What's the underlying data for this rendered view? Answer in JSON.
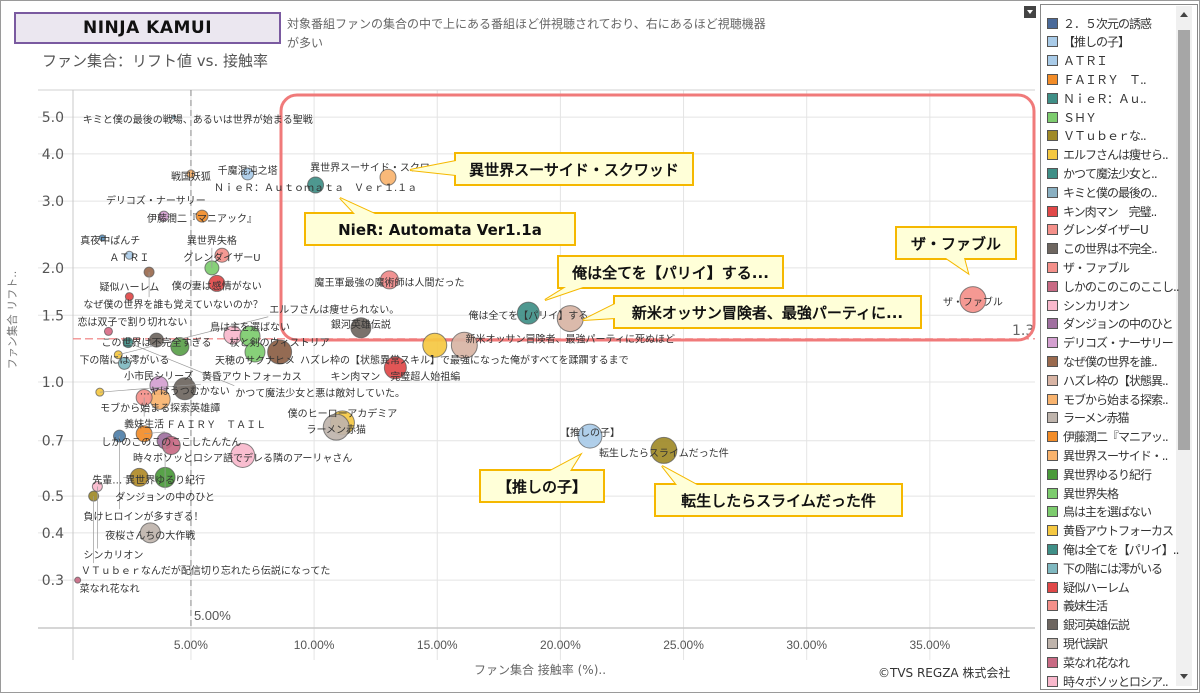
{
  "header": {
    "title": "NINJA KAMUI",
    "description": "対象番組ファンの集合の中で上にある番組ほど併視聴されており、右にあるほど視聴機器が多い",
    "subtitle": "ファン集合：リフト値 vs. 接触率"
  },
  "footer": {
    "copyright": "©TVS REGZA 株式会社"
  },
  "chart_data": {
    "type": "scatter",
    "xlabel": "ファン集合 接触率 (%)..",
    "ylabel": "ファン集合 リフト..",
    "x_unit": "%",
    "xlim": [
      0,
      39
    ],
    "ylim": [
      0.224,
      5.9
    ],
    "y_scale": "log",
    "grid": true,
    "x_ticks": [
      {
        "v": 5,
        "label": "5.00%"
      },
      {
        "v": 10,
        "label": "10.00%"
      },
      {
        "v": 15,
        "label": "15.00%"
      },
      {
        "v": 20,
        "label": "20.00%"
      },
      {
        "v": 25,
        "label": "25.00%"
      },
      {
        "v": 30,
        "label": "30.00%"
      },
      {
        "v": 35,
        "label": "35.00%"
      }
    ],
    "y_ticks": [
      {
        "v": 0.3,
        "label": "0.3"
      },
      {
        "v": 0.4,
        "label": "0.4"
      },
      {
        "v": 0.5,
        "label": "0.5"
      },
      {
        "v": 0.7,
        "label": "0.7"
      },
      {
        "v": 1.0,
        "label": "1.0"
      },
      {
        "v": 1.5,
        "label": "1.5"
      },
      {
        "v": 2.0,
        "label": "2.0"
      },
      {
        "v": 3.0,
        "label": "3.0"
      },
      {
        "v": 4.0,
        "label": "4.0"
      },
      {
        "v": 5.0,
        "label": "5.0"
      }
    ],
    "reference_lines": [
      {
        "axis": "x",
        "value": 5.0,
        "label": "5.00%"
      },
      {
        "axis": "y",
        "value": 1.3,
        "label": "1.3"
      }
    ],
    "highlight_region": {
      "x_from": 8.5,
      "y_from": 1.3,
      "color": "#f07a7a"
    },
    "points": [
      {
        "name": "キミと僕の最後の戦場、あるいは世界が始まる聖戦",
        "x": 4.3,
        "lift": 5.0,
        "size_rel": 2,
        "color": "#8ab0c2"
      },
      {
        "name": "戦国妖狐",
        "x": 5.0,
        "lift": 3.54,
        "size_rel": 4,
        "color": "#f8b36e"
      },
      {
        "name": "千魔混沌之塔",
        "x": 7.3,
        "lift": 3.54,
        "size_rel": 6,
        "color": "#a9cbe8"
      },
      {
        "name": "ＮｉｅＲ：Ａｕｔｏｍａｔａ　Ｖｅｒ１.１ａ",
        "x": 10.06,
        "lift": 3.31,
        "size_rel": 8,
        "color": "#3f8f87"
      },
      {
        "name": "異世界スーサイド・スクワッド",
        "x": 13.0,
        "lift": 3.47,
        "size_rel": 8,
        "color": "#f8b36e"
      },
      {
        "name": "デリコズ・ナーサリー",
        "x": 3.9,
        "lift": 2.74,
        "size_rel": 5,
        "color": "#d4a0d0"
      },
      {
        "name": "伊藤潤二『マニアック』",
        "x": 5.45,
        "lift": 2.74,
        "size_rel": 6,
        "color": "#f28c28"
      },
      {
        "name": "真夜中ぱんチ",
        "x": 1.4,
        "lift": 2.4,
        "size_rel": 3,
        "color": "#5a8fb8"
      },
      {
        "name": "ＡＴＲＩ",
        "x": 2.5,
        "lift": 2.16,
        "size_rel": 4,
        "color": "#a9cbe8"
      },
      {
        "name": "グレンダイザーU",
        "x": 6.26,
        "lift": 2.16,
        "size_rel": 7,
        "color": "#f4908a"
      },
      {
        "name": "なぜ僕の世界を誰も覚えていないのか？",
        "x": 3.3,
        "lift": 1.95,
        "size_rel": 5,
        "color": "#9a6a4e"
      },
      {
        "name": "異世界失格",
        "x": 5.85,
        "lift": 2.0,
        "size_rel": 7,
        "color": "#7dcc6e"
      },
      {
        "name": "僕の妻は感情がない",
        "x": 6.05,
        "lift": 1.82,
        "size_rel": 8,
        "color": "#e04848"
      },
      {
        "name": "疑似ハーレム",
        "x": 2.5,
        "lift": 1.68,
        "size_rel": 4,
        "color": "#e04848"
      },
      {
        "name": "恋は双子で割り切れない",
        "x": 1.65,
        "lift": 1.36,
        "size_rel": 4,
        "color": "#d86b86"
      },
      {
        "name": "かつて魔法少女と悪は敵対していた。",
        "x": 2.45,
        "lift": 1.27,
        "size_rel": 5,
        "color": "#3f8f87"
      },
      {
        "name": "この世界は不完全すぎる",
        "x": 3.6,
        "lift": 1.29,
        "size_rel": 7,
        "color": "#6e6660"
      },
      {
        "name": "",
        "x": 4.55,
        "lift": 1.24,
        "size_rel": 9,
        "color": "#5aa04a"
      },
      {
        "name": "エルフさんは痩せられない。",
        "x": 2.05,
        "lift": 1.18,
        "size_rel": 4,
        "color": "#f5c842"
      },
      {
        "name": "下の階には澪がいる",
        "x": 2.3,
        "lift": 1.12,
        "size_rel": 6,
        "color": "#7fb8c0"
      },
      {
        "name": "",
        "x": 6.7,
        "lift": 1.33,
        "size_rel": 9,
        "color": "#f8b8cc"
      },
      {
        "name": "鳥は主を選ばない",
        "x": 7.4,
        "lift": 1.32,
        "size_rel": 10,
        "color": "#7dcc6e"
      },
      {
        "name": "天穂のサクナヒメ",
        "x": 7.6,
        "lift": 1.2,
        "size_rel": 10,
        "color": "#7dcc6e"
      },
      {
        "name": "杖と剣のウィストリア",
        "x": 8.6,
        "lift": 1.2,
        "size_rel": 12,
        "color": "#8b5e44"
      },
      {
        "name": "魔王軍最強の魔術師は人間だった",
        "x": 13.06,
        "lift": 1.86,
        "size_rel": 9,
        "color": "#f08a8a"
      },
      {
        "name": "銀河英雄伝説",
        "x": 11.9,
        "lift": 1.39,
        "size_rel": 10,
        "color": "#6e6660"
      },
      {
        "name": "俺は全てを【パリイ】する",
        "x": 18.7,
        "lift": 1.52,
        "size_rel": 11,
        "color": "#3f8f87"
      },
      {
        "name": "新米オッサン冒険者、最強パーティに死ぬほど",
        "x": 20.4,
        "lift": 1.47,
        "size_rel": 13,
        "color": "#d8b4a4"
      },
      {
        "name": "ハズレ枠の【状態異常スキル】で最強になった俺がすべてを蹂躙するまで",
        "x": 16.1,
        "lift": 1.25,
        "size_rel": 13,
        "color": "#d8b4a4"
      },
      {
        "name": "",
        "x": 14.9,
        "lift": 1.25,
        "size_rel": 12,
        "color": "#f5c842"
      },
      {
        "name": "キン肉マン　完璧超人始祖編",
        "x": 13.3,
        "lift": 1.09,
        "size_rel": 11,
        "color": "#e04848"
      },
      {
        "name": "ザ・ファブル",
        "x": 36.75,
        "lift": 1.65,
        "size_rel": 13,
        "color": "#f4908a"
      },
      {
        "name": "【推しの子】",
        "x": 21.2,
        "lift": 0.72,
        "size_rel": 12,
        "color": "#a9cbe8"
      },
      {
        "name": "転生したらスライムだった件",
        "x": 24.2,
        "lift": 0.66,
        "size_rel": 13,
        "color": "#a08a28"
      },
      {
        "name": "僕のヒーローアカデミア",
        "x": 11.15,
        "lift": 0.78,
        "size_rel": 12,
        "color": "#f5c842"
      },
      {
        "name": "ラーメン赤猫",
        "x": 10.9,
        "lift": 0.76,
        "size_rel": 13,
        "color": "#bfb4ac"
      },
      {
        "name": "小市民シリーズ",
        "x": 3.7,
        "lift": 0.98,
        "size_rel": 9,
        "color": "#d4a0d0"
      },
      {
        "name": "…ヤはうつむかない",
        "x": 4.75,
        "lift": 0.96,
        "size_rel": 11,
        "color": "#6e6660"
      },
      {
        "name": "黄昏アウトフォーカス",
        "x": 1.3,
        "lift": 0.94,
        "size_rel": 4,
        "color": "#f5c842"
      },
      {
        "name": "モブから始まる探索英雄譚",
        "x": 3.75,
        "lift": 0.9,
        "size_rel": 10,
        "color": "#f8b36e"
      },
      {
        "name": "義妹生活",
        "x": 3.1,
        "lift": 0.91,
        "size_rel": 8,
        "color": "#f4908a"
      },
      {
        "name": "負けヒロインが多すぎる！",
        "x": 2.1,
        "lift": 0.72,
        "size_rel": 6,
        "color": "#4f7fa8"
      },
      {
        "name": "ＦＡＩＲＹ　ＴＡＩＬ",
        "x": 3.1,
        "lift": 0.73,
        "size_rel": 8,
        "color": "#f28c28"
      },
      {
        "name": "ダンジョンの中のひと",
        "x": 3.95,
        "lift": 0.7,
        "size_rel": 8,
        "color": "#a070a0"
      },
      {
        "name": "しかのこのこのここしたんたん",
        "x": 4.2,
        "lift": 0.68,
        "size_rel": 9,
        "color": "#c86a84"
      },
      {
        "name": "時々ボソッとロシア語でデレる隣のアーリャさん",
        "x": 7.1,
        "lift": 0.64,
        "size_rel": 12,
        "color": "#f8b8cc"
      },
      {
        "name": "先輩…",
        "x": 2.9,
        "lift": 0.56,
        "size_rel": 9,
        "color": "#b08a28"
      },
      {
        "name": "異世界ゆるり紀行",
        "x": 3.95,
        "lift": 0.56,
        "size_rel": 10,
        "color": "#4a9a3a"
      },
      {
        "name": "シンカリオン",
        "x": 1.2,
        "lift": 0.53,
        "size_rel": 5,
        "color": "#f8b8cc"
      },
      {
        "name": "ＶＴｕｂｅｒなんだが配信切り忘れたら伝説になってた",
        "x": 1.05,
        "lift": 0.5,
        "size_rel": 5,
        "color": "#a08a28"
      },
      {
        "name": "夜桜さんちの大作戦",
        "x": 3.35,
        "lift": 0.4,
        "size_rel": 10,
        "color": "#bfb4ac"
      },
      {
        "name": "菜なれ花なれ",
        "x": 0.4,
        "lift": 0.3,
        "size_rel": 3,
        "color": "#c86a84"
      }
    ],
    "callouts": [
      {
        "text": "異世界スーサイド・スクワッド"
      },
      {
        "text": "NieR: Automata Ver1.1a"
      },
      {
        "text": "ザ・ファブル"
      },
      {
        "text": "俺は全てを【パリイ】する..."
      },
      {
        "text": "新米オッサン冒険者、最強パーティに..."
      },
      {
        "text": "【推しの子】"
      },
      {
        "text": "転生したらスライムだった件"
      }
    ]
  },
  "legend": {
    "items": [
      {
        "label": "２．５次元の誘惑",
        "color": "#4a6a9a"
      },
      {
        "label": "【推しの子】",
        "color": "#a9cbe8"
      },
      {
        "label": "ＡＴＲＩ",
        "color": "#a9cbe8"
      },
      {
        "label": "ＦＡＩＲＹ　Ｔ..",
        "color": "#f28c28"
      },
      {
        "label": "ＮｉｅＲ：Ａｕ..",
        "color": "#3f8f87"
      },
      {
        "label": "ＳＨＹ",
        "color": "#7dcc6e"
      },
      {
        "label": "ＶＴｕｂｅｒな..",
        "color": "#a08a28"
      },
      {
        "label": "エルフさんは痩せら..",
        "color": "#f5c842"
      },
      {
        "label": "かつて魔法少女と..",
        "color": "#3f8f87"
      },
      {
        "label": "キミと僕の最後の..",
        "color": "#8ab0c2"
      },
      {
        "label": "キン肉マン　完璧..",
        "color": "#e04848"
      },
      {
        "label": "グレンダイザーU",
        "color": "#f4908a"
      },
      {
        "label": "この世界は不完全..",
        "color": "#6e6660"
      },
      {
        "label": "ザ・ファブル",
        "color": "#f4908a"
      },
      {
        "label": "しかのこのこのここし..",
        "color": "#c86a84"
      },
      {
        "label": "シンカリオン",
        "color": "#f8b8cc"
      },
      {
        "label": "ダンジョンの中のひと",
        "color": "#a070a0"
      },
      {
        "label": "デリコズ・ナーサリー",
        "color": "#d4a0d0"
      },
      {
        "label": "なぜ僕の世界を誰..",
        "color": "#9a6a4e"
      },
      {
        "label": "ハズレ枠の【状態異..",
        "color": "#d8b4a4"
      },
      {
        "label": "モブから始まる探索..",
        "color": "#f8b36e"
      },
      {
        "label": "ラーメン赤猫",
        "color": "#bfb4ac"
      },
      {
        "label": "伊藤潤二『マニアッ..",
        "color": "#f28c28"
      },
      {
        "label": "異世界スーサイド・..",
        "color": "#f8b36e"
      },
      {
        "label": "異世界ゆるり紀行",
        "color": "#4a9a3a"
      },
      {
        "label": "異世界失格",
        "color": "#7dcc6e"
      },
      {
        "label": "鳥は主を選ばない",
        "color": "#7dcc6e"
      },
      {
        "label": "黄昏アウトフォーカス",
        "color": "#f5c842"
      },
      {
        "label": "俺は全てを【パリイ】..",
        "color": "#3f8f87"
      },
      {
        "label": "下の階には澪がいる",
        "color": "#7fb8c0"
      },
      {
        "label": "疑似ハーレム",
        "color": "#e04848"
      },
      {
        "label": "義妹生活",
        "color": "#f4908a"
      },
      {
        "label": "銀河英雄伝説",
        "color": "#6e6660"
      },
      {
        "label": "現代誤訳",
        "color": "#bfb4ac"
      },
      {
        "label": "菜なれ花なれ",
        "color": "#c86a84"
      },
      {
        "label": "時々ボソッとロシア..",
        "color": "#f8b8cc"
      }
    ]
  }
}
